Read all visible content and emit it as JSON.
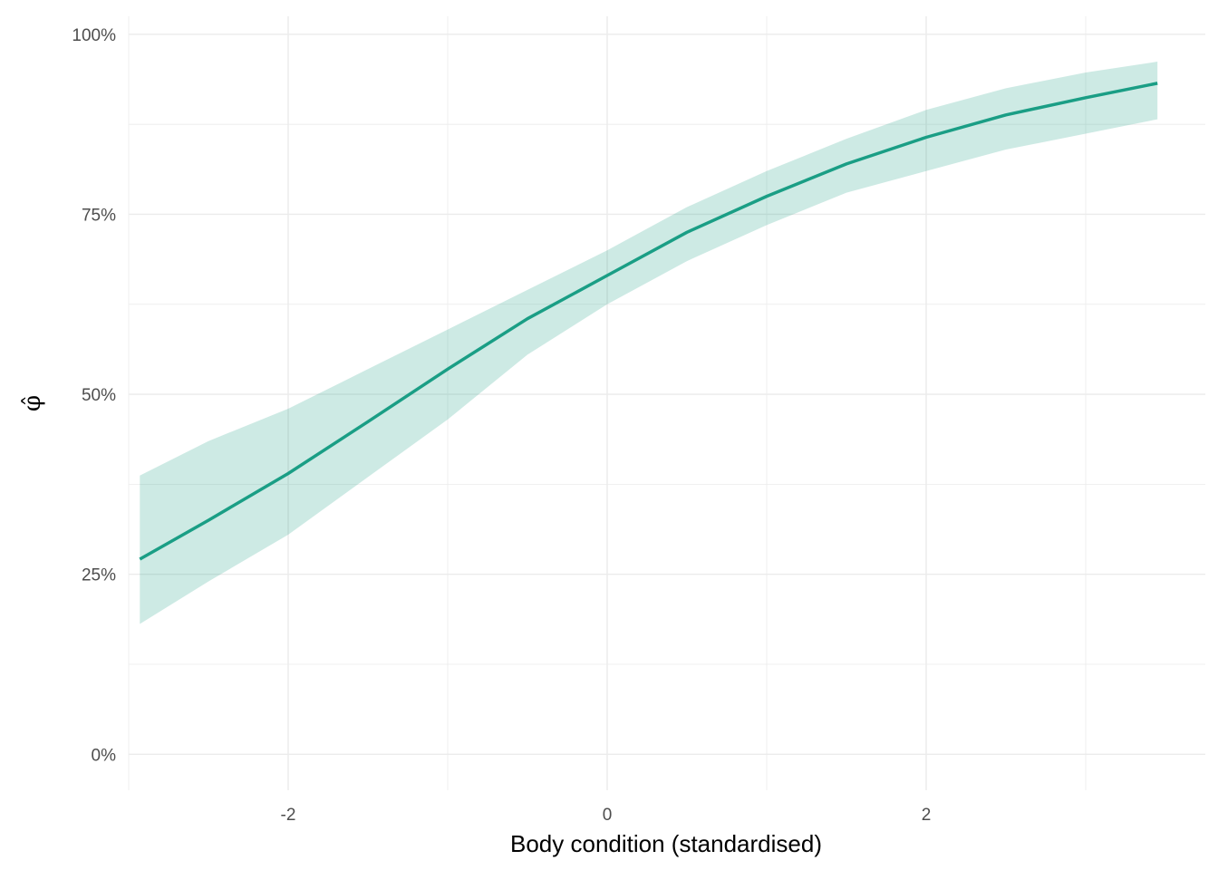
{
  "chart_data": {
    "type": "line",
    "title": "",
    "xlabel": "Body condition (standardised)",
    "ylabel": "φ̂",
    "xlim": [
      -3.0,
      3.75
    ],
    "ylim": [
      -0.05,
      1.025
    ],
    "x_ticks": [
      {
        "value": -2,
        "label": "-2"
      },
      {
        "value": 0,
        "label": "0"
      },
      {
        "value": 2,
        "label": "2"
      }
    ],
    "x_minor_ticks": [
      -3,
      -1,
      1,
      3
    ],
    "y_ticks": [
      {
        "value": 0,
        "label": "0%"
      },
      {
        "value": 0.25,
        "label": "25%"
      },
      {
        "value": 0.5,
        "label": "50%"
      },
      {
        "value": 0.75,
        "label": "75%"
      },
      {
        "value": 1.0,
        "label": "100%"
      }
    ],
    "y_minor_ticks": [
      0.125,
      0.375,
      0.625,
      0.875
    ],
    "grid": true,
    "legend": "none",
    "colors": {
      "line": "#1a9e85",
      "ribbon": "#1a9e85",
      "ribbon_opacity": 0.22,
      "grid": "#ebebeb"
    },
    "series": [
      {
        "x": [
          -2.93,
          -2.5,
          -2.0,
          -1.5,
          -1.0,
          -0.5,
          0.0,
          0.5,
          1.0,
          1.5,
          2.0,
          2.5,
          3.0,
          3.45
        ],
        "y": [
          0.271,
          0.325,
          0.39,
          0.462,
          0.535,
          0.605,
          0.665,
          0.725,
          0.775,
          0.82,
          0.857,
          0.888,
          0.912,
          0.932
        ],
        "lower": [
          0.181,
          0.24,
          0.305,
          0.385,
          0.465,
          0.555,
          0.625,
          0.685,
          0.735,
          0.78,
          0.81,
          0.84,
          0.862,
          0.882
        ],
        "upper": [
          0.387,
          0.435,
          0.48,
          0.535,
          0.59,
          0.645,
          0.7,
          0.76,
          0.81,
          0.855,
          0.895,
          0.925,
          0.947,
          0.962
        ]
      }
    ]
  }
}
